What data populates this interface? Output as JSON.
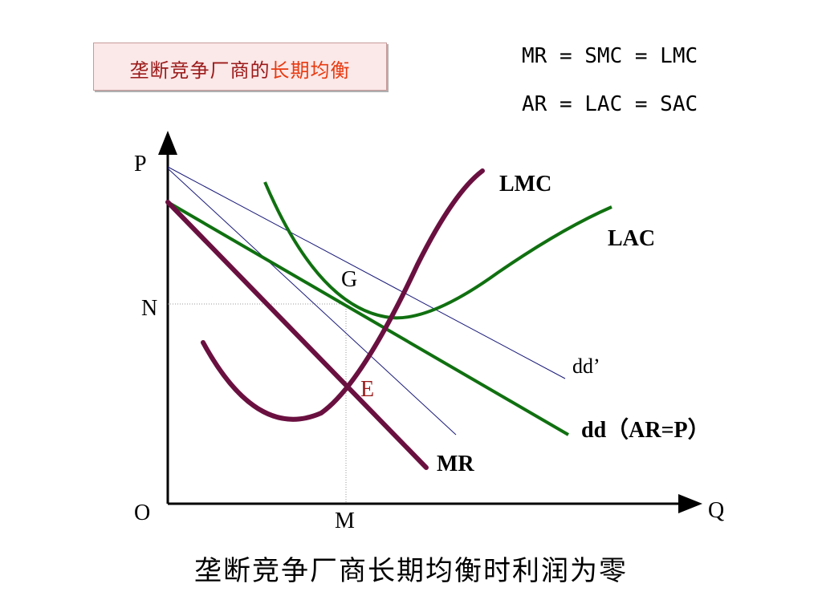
{
  "title": {
    "part1": "垄断竞争厂商的",
    "part2": "长期均衡"
  },
  "formulas": [
    "MR = SMC = LMC",
    "AR = LAC = SAC"
  ],
  "axes": {
    "y": "P",
    "x": "Q",
    "origin": "O",
    "n_label": "N",
    "m_label": "M"
  },
  "curves": {
    "lmc": "LMC",
    "lac": "LAC",
    "mr": "MR",
    "dd_prime": "dd’",
    "dd": "dd（AR=P）"
  },
  "points": {
    "g": "G",
    "e": "E"
  },
  "footer": "垄断竞争厂商长期均衡时利润为零",
  "colors": {
    "green": "#107010",
    "maroon": "#6a1040",
    "navy": "#1a1a7a",
    "title_dark": "#9b1a1a",
    "title_bright": "#e83a10"
  }
}
